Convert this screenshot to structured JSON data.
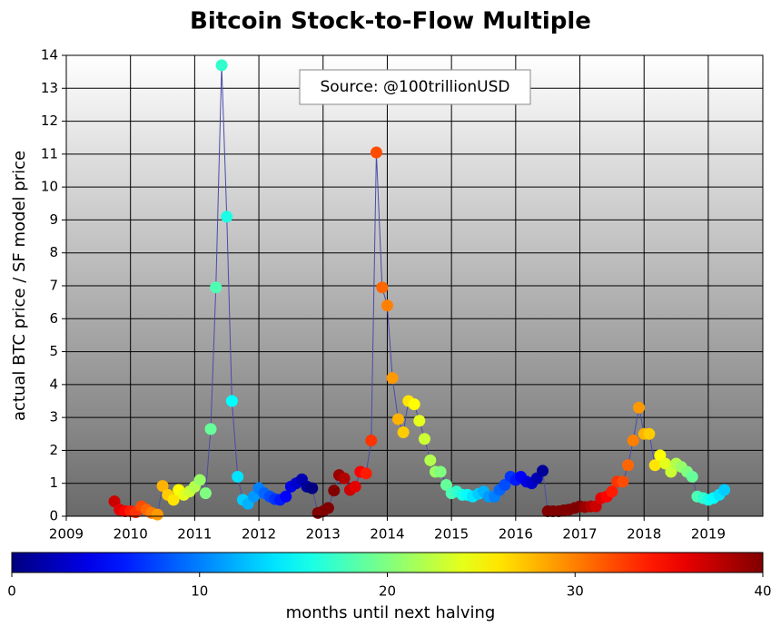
{
  "chart_data": {
    "type": "scatter",
    "title": "Bitcoin Stock-to-Flow Multiple",
    "annotation": "Source: @100trillionUSD",
    "ylabel": "actual BTC price / SF model price",
    "x": [
      2009.75,
      2009.83,
      2009.92,
      2010,
      2010.08,
      2010.17,
      2010.25,
      2010.33,
      2010.42,
      2010.5,
      2010.58,
      2010.67,
      2010.75,
      2010.83,
      2010.92,
      2011,
      2011.08,
      2011.17,
      2011.25,
      2011.33,
      2011.42,
      2011.5,
      2011.58,
      2011.67,
      2011.75,
      2011.83,
      2011.92,
      2012,
      2012.08,
      2012.17,
      2012.25,
      2012.33,
      2012.42,
      2012.5,
      2012.58,
      2012.67,
      2012.75,
      2012.83,
      2012.92,
      2013,
      2013.08,
      2013.17,
      2013.25,
      2013.33,
      2013.42,
      2013.5,
      2013.58,
      2013.67,
      2013.75,
      2013.83,
      2013.92,
      2014,
      2014.08,
      2014.17,
      2014.25,
      2014.33,
      2014.42,
      2014.5,
      2014.58,
      2014.67,
      2014.75,
      2014.83,
      2014.92,
      2015,
      2015.08,
      2015.17,
      2015.25,
      2015.33,
      2015.42,
      2015.5,
      2015.58,
      2015.67,
      2015.75,
      2015.83,
      2015.92,
      2016,
      2016.08,
      2016.17,
      2016.25,
      2016.33,
      2016.42,
      2016.5,
      2016.58,
      2016.67,
      2016.75,
      2016.83,
      2016.92,
      2017,
      2017.08,
      2017.17,
      2017.25,
      2017.33,
      2017.42,
      2017.5,
      2017.58,
      2017.67,
      2017.75,
      2017.83,
      2017.92,
      2018,
      2018.08,
      2018.17,
      2018.25,
      2018.33,
      2018.42,
      2018.5,
      2018.58,
      2018.67,
      2018.75,
      2018.83,
      2018.92,
      2019,
      2019.08,
      2019.17,
      2019.25
    ],
    "values": [
      0.45,
      0.2,
      0.15,
      0.15,
      0.12,
      0.3,
      0.2,
      0.1,
      0.05,
      0.92,
      0.65,
      0.5,
      0.8,
      0.65,
      0.75,
      0.9,
      1.1,
      0.7,
      2.65,
      6.95,
      13.7,
      9.1,
      3.5,
      1.2,
      0.5,
      0.38,
      0.6,
      0.85,
      0.7,
      0.6,
      0.52,
      0.5,
      0.6,
      0.9,
      1.0,
      1.12,
      0.9,
      0.85,
      0.1,
      0.15,
      0.25,
      0.78,
      1.25,
      1.15,
      0.8,
      0.9,
      1.35,
      1.3,
      2.3,
      11.05,
      6.95,
      6.4,
      4.2,
      2.95,
      2.55,
      3.5,
      3.4,
      2.9,
      2.35,
      1.7,
      1.35,
      1.35,
      0.95,
      0.7,
      0.75,
      0.65,
      0.65,
      0.6,
      0.68,
      0.75,
      0.6,
      0.6,
      0.8,
      0.95,
      1.2,
      1.1,
      1.2,
      1.05,
      1.0,
      1.15,
      1.38,
      0.15,
      0.15,
      0.15,
      0.18,
      0.2,
      0.25,
      0.3,
      0.28,
      0.3,
      0.3,
      0.55,
      0.6,
      0.75,
      1.05,
      1.05,
      1.55,
      2.3,
      3.3,
      2.5,
      2.5,
      1.55,
      1.85,
      1.6,
      1.35,
      1.6,
      1.5,
      1.35,
      1.2,
      0.6,
      0.55,
      0.5,
      0.55,
      0.65,
      0.8
    ],
    "color_values": [
      37,
      36,
      35,
      34,
      33,
      32,
      31,
      30,
      29,
      28,
      27,
      26,
      25,
      24,
      23,
      22,
      21,
      20,
      19,
      18,
      17,
      16,
      15,
      14,
      13,
      12,
      11,
      10,
      9,
      8,
      7,
      6,
      5,
      4,
      3,
      2,
      1,
      0,
      43,
      42,
      41,
      40,
      39,
      38,
      37,
      36,
      35,
      34,
      33,
      32,
      31,
      30,
      29,
      28,
      27,
      26,
      25,
      24,
      23,
      22,
      21,
      20,
      19,
      18,
      17,
      16,
      15,
      14,
      13,
      12,
      11,
      10,
      9,
      8,
      7,
      6,
      5,
      4,
      3,
      2,
      1,
      46,
      45,
      44,
      43,
      42,
      41,
      40,
      39,
      38,
      37,
      36,
      35,
      34,
      33,
      32,
      31,
      30,
      29,
      28,
      27,
      26,
      25,
      24,
      23,
      22,
      21,
      20,
      19,
      18,
      17,
      16,
      15,
      14,
      13
    ],
    "line_color": "#4b4ba8",
    "colormap": "jet",
    "colorbar": {
      "label": "months until next halving",
      "lim": [
        0,
        40
      ],
      "ticks": [
        0,
        10,
        20,
        30,
        40
      ]
    },
    "xlim": [
      2009,
      2019.85
    ],
    "xticks": [
      2009,
      2010,
      2011,
      2012,
      2013,
      2014,
      2015,
      2016,
      2017,
      2018,
      2019
    ],
    "ylim": [
      0,
      14
    ],
    "yticks": [
      0,
      1,
      2,
      3,
      4,
      5,
      6,
      7,
      8,
      9,
      10,
      11,
      12,
      13,
      14
    ],
    "grid": true
  }
}
